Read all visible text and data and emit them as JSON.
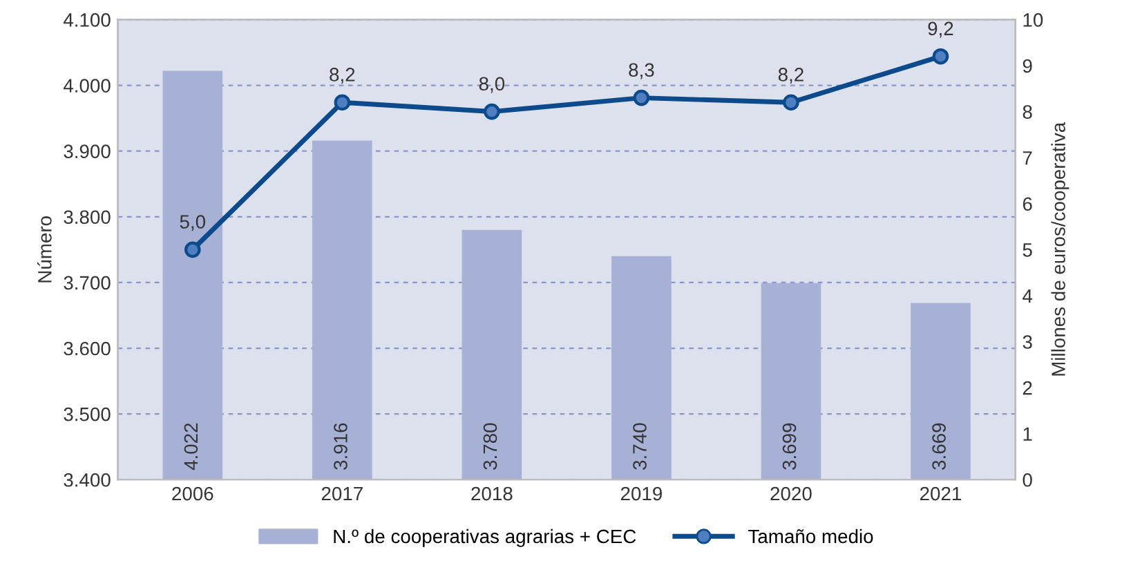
{
  "chart_data": {
    "type": "bar",
    "categories": [
      "2006",
      "2017",
      "2018",
      "2019",
      "2020",
      "2021"
    ],
    "ylabel": "Número",
    "y2label": "Millones de euros/cooperativa",
    "series": [
      {
        "name": "N.º de cooperativas agrarias + CEC",
        "color": "#a7b1d5",
        "values": [
          4022,
          3916,
          3780,
          3740,
          3699,
          3669
        ],
        "value_labels": [
          "4.022",
          "3.916",
          "3.780",
          "3.740",
          "3.699",
          "3.669"
        ]
      },
      {
        "name": "Tamaño medio",
        "type": "line",
        "axis": "y2",
        "color": "#0d4a8c",
        "marker": "circle",
        "values": [
          5.0,
          8.2,
          8.0,
          8.3,
          8.2,
          9.2
        ],
        "value_labels": [
          "5,0",
          "8,2",
          "8,0",
          "8,3",
          "8,2",
          "9,2"
        ]
      }
    ],
    "ylim": [
      3400,
      4100
    ],
    "yticks": [
      {
        "value": 3400,
        "label": "3.400"
      },
      {
        "value": 3500,
        "label": "3.500"
      },
      {
        "value": 3600,
        "label": "3.600"
      },
      {
        "value": 3700,
        "label": "3.700"
      },
      {
        "value": 3800,
        "label": "3.800"
      },
      {
        "value": 3900,
        "label": "3.900"
      },
      {
        "value": 4000,
        "label": "4.000"
      },
      {
        "value": 4100,
        "label": "4.100"
      }
    ],
    "y2lim": [
      0,
      10
    ],
    "y2ticks": [
      0,
      1,
      2,
      3,
      4,
      5,
      6,
      7,
      8,
      9,
      10
    ],
    "grid": "y",
    "legend": "bottom"
  }
}
